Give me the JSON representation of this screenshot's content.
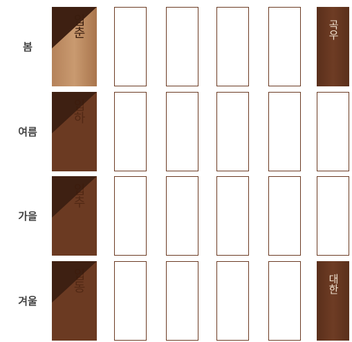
{
  "rows": [
    {
      "season": "봄",
      "first_card": {
        "title": "입춘"
      },
      "last_card": {
        "title": "곡우"
      }
    },
    {
      "season": "여름",
      "first_card": {
        "title": "입하"
      }
    },
    {
      "season": "가을",
      "first_card": {
        "title": "입추"
      }
    },
    {
      "season": "겨울",
      "first_card": {
        "title": "입동"
      },
      "last_card": {
        "title": "대한"
      }
    }
  ]
}
